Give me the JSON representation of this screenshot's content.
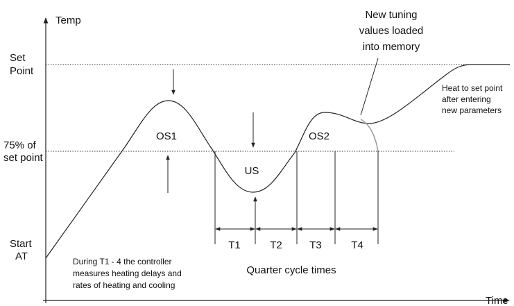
{
  "axes": {
    "y_label": "Temp",
    "x_label": "Time"
  },
  "levels": {
    "set_point": [
      "Set",
      "Point"
    ],
    "seventy_five": [
      "75% of",
      "set point"
    ],
    "start": [
      "Start",
      "AT"
    ]
  },
  "regions": {
    "os1": "OS1",
    "us": "US",
    "os2": "OS2"
  },
  "periods": [
    "T1",
    "T2",
    "T3",
    "T4"
  ],
  "period_caption": "Quarter cycle times",
  "notes": {
    "new_tuning": [
      "New tuning",
      "values loaded",
      "into memory"
    ],
    "heat": [
      "Heat to set point",
      "after entering",
      "new parameters"
    ],
    "during": [
      "During T1 - 4 the controller",
      "measures heating delays and",
      "rates of heating and cooling"
    ]
  }
}
